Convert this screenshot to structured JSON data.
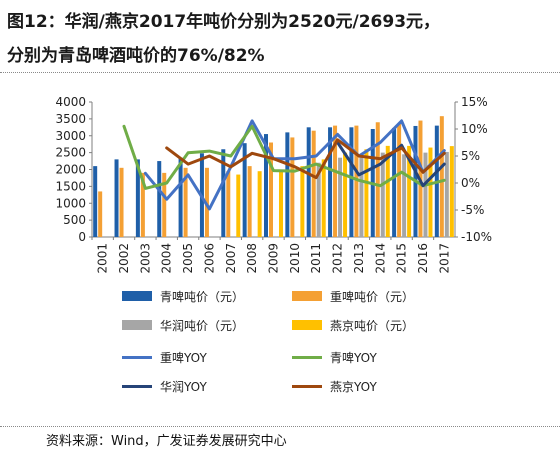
{
  "title": {
    "line1": "图12：华润/燕京2017年吨价分别为2520元/2693元，",
    "line2": "分别为青岛啤酒吨价的76%/82%"
  },
  "source": "资料来源：Wind，广发证券发展研究中心",
  "colors": {
    "tsingtao_price": "#1f5fa8",
    "chongqing_price": "#f4a034",
    "cr_price": "#a6a6a6",
    "yanjing_price": "#ffc000",
    "chongqing_yoy": "#4472c4",
    "tsingtao_yoy": "#70ad47",
    "cr_yoy": "#264478",
    "yanjing_yoy": "#9e480e"
  },
  "chart_data": {
    "type": "bar",
    "title": "",
    "xlabel": "",
    "ylabel": "",
    "categories": [
      "2001",
      "2002",
      "2003",
      "2004",
      "2005",
      "2006",
      "2007",
      "2008",
      "2009",
      "2010",
      "2011",
      "2012",
      "2013",
      "2014",
      "2015",
      "2016",
      "2017"
    ],
    "ylim": [
      0,
      4000
    ],
    "yticks": [
      "0",
      "500",
      "1000",
      "1500",
      "2000",
      "2500",
      "3000",
      "3500",
      "4000"
    ],
    "y2lim": [
      -10,
      15
    ],
    "y2ticks": [
      "-10%",
      "-5%",
      "0%",
      "5%",
      "10%",
      "15%"
    ],
    "grid": false,
    "legend_position": "bottom",
    "bar_series": [
      {
        "name": "青啤吨价（元）",
        "values": [
          2100,
          2300,
          2300,
          2250,
          2350,
          2480,
          2600,
          2780,
          3050,
          3100,
          3250,
          3250,
          3250,
          3200,
          3230,
          3290,
          3300
        ]
      },
      {
        "name": "重啤吨价（元）",
        "values": [
          1350,
          2050,
          1900,
          1900,
          2050,
          2050,
          1950,
          2100,
          2800,
          2950,
          3150,
          3300,
          3300,
          3400,
          3350,
          3450,
          3580
        ]
      },
      {
        "name": "华润吨价（元）",
        "values": [
          null,
          null,
          null,
          null,
          null,
          null,
          null,
          null,
          null,
          null,
          2200,
          2350,
          2400,
          2500,
          2450,
          2500,
          2520
        ]
      },
      {
        "name": "燕京吨价（元）",
        "values": [
          null,
          null,
          null,
          null,
          null,
          null,
          1850,
          1950,
          2000,
          2100,
          2300,
          2500,
          2600,
          2700,
          2700,
          2650,
          2693
        ]
      }
    ],
    "line_series": [
      {
        "name": "重啤YOY",
        "values": [
          null,
          null,
          1.8,
          -3.0,
          1.5,
          -4.8,
          3.0,
          11.5,
          4.5,
          4.5,
          5.0,
          9.0,
          5.0,
          7.5,
          11.5,
          2.0,
          6.0
        ]
      },
      {
        "name": "青啤YOY",
        "values": [
          null,
          10.5,
          -1.0,
          0.0,
          5.6,
          5.9,
          5.0,
          10.5,
          2.3,
          2.2,
          3.5,
          2.0,
          0.5,
          -0.5,
          2.0,
          -0.5,
          0.5
        ]
      },
      {
        "name": "华润YOY",
        "values": [
          null,
          null,
          null,
          null,
          null,
          null,
          null,
          null,
          null,
          null,
          null,
          7.5,
          1.5,
          3.5,
          7.0,
          -0.5,
          3.5
        ]
      },
      {
        "name": "燕京YOY",
        "values": [
          null,
          null,
          null,
          6.5,
          3.5,
          5.0,
          3.0,
          5.5,
          4.5,
          3.0,
          1.0,
          8.0,
          5.0,
          4.5,
          6.5,
          2.0,
          5.5
        ]
      }
    ]
  },
  "legend": [
    {
      "label": "青啤吨价（元）",
      "kind": "bar",
      "color": "#1f5fa8"
    },
    {
      "label": "重啤吨价（元）",
      "kind": "bar",
      "color": "#f4a034"
    },
    {
      "label": "华润吨价（元）",
      "kind": "bar",
      "color": "#a6a6a6"
    },
    {
      "label": "燕京吨价（元）",
      "kind": "bar",
      "color": "#ffc000"
    },
    {
      "label": "重啤YOY",
      "kind": "line",
      "color": "#4472c4"
    },
    {
      "label": "青啤YOY",
      "kind": "line",
      "color": "#70ad47"
    },
    {
      "label": "华润YOY",
      "kind": "line",
      "color": "#264478"
    },
    {
      "label": "燕京YOY",
      "kind": "line",
      "color": "#9e480e"
    }
  ]
}
